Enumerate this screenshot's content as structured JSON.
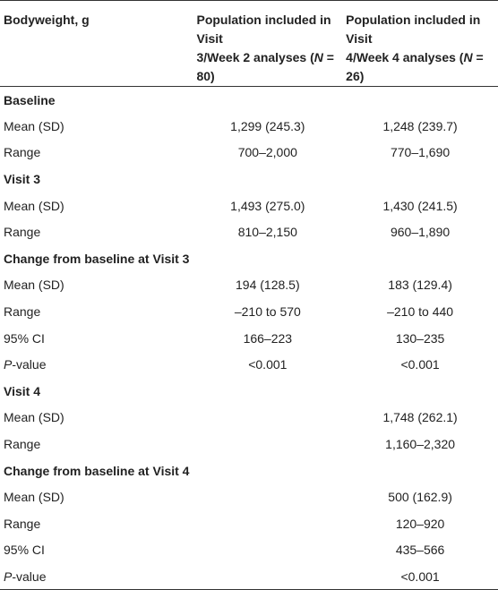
{
  "header": {
    "col0": "Bodyweight, g",
    "col1_line1": "Population included in Visit",
    "col1_line2_a": "3/Week 2 analyses (",
    "col1_n": "N",
    "col1_line2_b": " = 80)",
    "col2_line1": "Population included in Visit",
    "col2_line2_a": "4/Week 4 analyses (",
    "col2_n": "N",
    "col2_line2_b": " = 26)"
  },
  "rows": [
    {
      "type": "section",
      "label": "Baseline",
      "v1": "",
      "v2": ""
    },
    {
      "type": "data",
      "label": "Mean (SD)",
      "v1": "1,299 (245.3)",
      "v2": "1,248 (239.7)"
    },
    {
      "type": "data",
      "label": "Range",
      "v1": "700–2,000",
      "v2": "770–1,690"
    },
    {
      "type": "section",
      "label": "Visit 3",
      "v1": "",
      "v2": ""
    },
    {
      "type": "data",
      "label": "Mean (SD)",
      "v1": "1,493 (275.0)",
      "v2": "1,430 (241.5)"
    },
    {
      "type": "data",
      "label": "Range",
      "v1": "810–2,150",
      "v2": "960–1,890"
    },
    {
      "type": "section",
      "label": "Change from baseline at Visit 3",
      "v1": "",
      "v2": ""
    },
    {
      "type": "data",
      "label": "Mean (SD)",
      "v1": "194 (128.5)",
      "v2": "183 (129.4)"
    },
    {
      "type": "data",
      "label": "Range",
      "v1": "–210 to 570",
      "v2": "–210 to 440"
    },
    {
      "type": "data",
      "label": "95% CI",
      "v1": "166–223",
      "v2": "130–235"
    },
    {
      "type": "pvalue",
      "label_italic": "P",
      "label_rest": "-value",
      "v1": "<0.001",
      "v2": "<0.001"
    },
    {
      "type": "section",
      "label": "Visit 4",
      "v1": "",
      "v2": ""
    },
    {
      "type": "data",
      "label": "Mean (SD)",
      "v1": "",
      "v2": "1,748 (262.1)"
    },
    {
      "type": "data",
      "label": "Range",
      "v1": "",
      "v2": "1,160–2,320"
    },
    {
      "type": "section",
      "label": "Change from baseline at Visit 4",
      "v1": "",
      "v2": ""
    },
    {
      "type": "data",
      "label": "Mean (SD)",
      "v1": "",
      "v2": "500 (162.9)"
    },
    {
      "type": "data",
      "label": "Range",
      "v1": "",
      "v2": "120–920"
    },
    {
      "type": "data",
      "label": "95% CI",
      "v1": "",
      "v2": "435–566"
    },
    {
      "type": "pvalue",
      "label_italic": "P",
      "label_rest": "-value",
      "v1": "",
      "v2": "<0.001"
    }
  ]
}
